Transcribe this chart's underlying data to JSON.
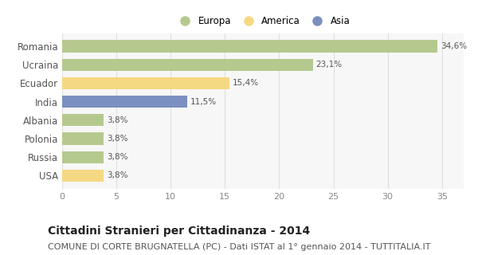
{
  "categories": [
    "Romania",
    "Ucraina",
    "Ecuador",
    "India",
    "Albania",
    "Polonia",
    "Russia",
    "USA"
  ],
  "values": [
    34.6,
    23.1,
    15.4,
    11.5,
    3.8,
    3.8,
    3.8,
    3.8
  ],
  "labels": [
    "34,6%",
    "23,1%",
    "15,4%",
    "11,5%",
    "3,8%",
    "3,8%",
    "3,8%",
    "3,8%"
  ],
  "colors": [
    "#b5c98e",
    "#b5c98e",
    "#f5d882",
    "#7b8fc0",
    "#b5c98e",
    "#b5c98e",
    "#b5c98e",
    "#f5d882"
  ],
  "legend": [
    {
      "label": "Europa",
      "color": "#b5c98e"
    },
    {
      "label": "America",
      "color": "#f5d882"
    },
    {
      "label": "Asia",
      "color": "#7b8fc0"
    }
  ],
  "xlim": [
    0,
    37
  ],
  "xticks": [
    0,
    5,
    10,
    15,
    20,
    25,
    30,
    35
  ],
  "title": "Cittadini Stranieri per Cittadinanza - 2014",
  "subtitle": "COMUNE DI CORTE BRUGNATELLA (PC) - Dati ISTAT al 1° gennaio 2014 - TUTTITALIA.IT",
  "title_fontsize": 10,
  "subtitle_fontsize": 8,
  "background_color": "#ffffff",
  "plot_bg_color": "#f7f7f7",
  "grid_color": "#e0e0e0",
  "bar_height": 0.65,
  "label_color": "#555555",
  "ytick_color": "#555555"
}
